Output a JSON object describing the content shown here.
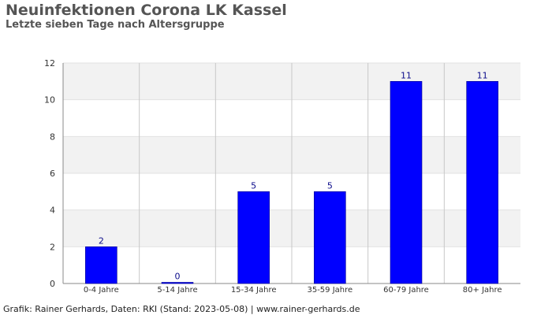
{
  "title": "Neuinfektionen Corona LK Kassel",
  "subtitle": "Letzte sieben Tage nach Altersgruppe",
  "footer": "Grafik: Rainer Gerhards, Daten: RKI (Stand: 2023-05-08) | www.rainer-gerhards.de",
  "colors": {
    "bar": "#0000ff",
    "bar_edge": "#00008b",
    "band_shaded": "#f2f2f2",
    "band_plain": "#ffffff"
  },
  "chart_data": {
    "type": "bar",
    "title": "Neuinfektionen Corona LK Kassel",
    "subtitle": "Letzte sieben Tage nach Altersgruppe",
    "categories": [
      "0-4 Jahre",
      "5-14 Jahre",
      "15-34 Jahre",
      "35-59 Jahre",
      "60-79 Jahre",
      "80+ Jahre"
    ],
    "values": [
      2,
      0,
      5,
      5,
      11,
      11
    ],
    "xlabel": "",
    "ylabel": "",
    "ylim": [
      0,
      12
    ],
    "yticks": [
      0,
      2,
      4,
      6,
      8,
      10,
      12
    ],
    "grid": true,
    "data_labels": true
  }
}
